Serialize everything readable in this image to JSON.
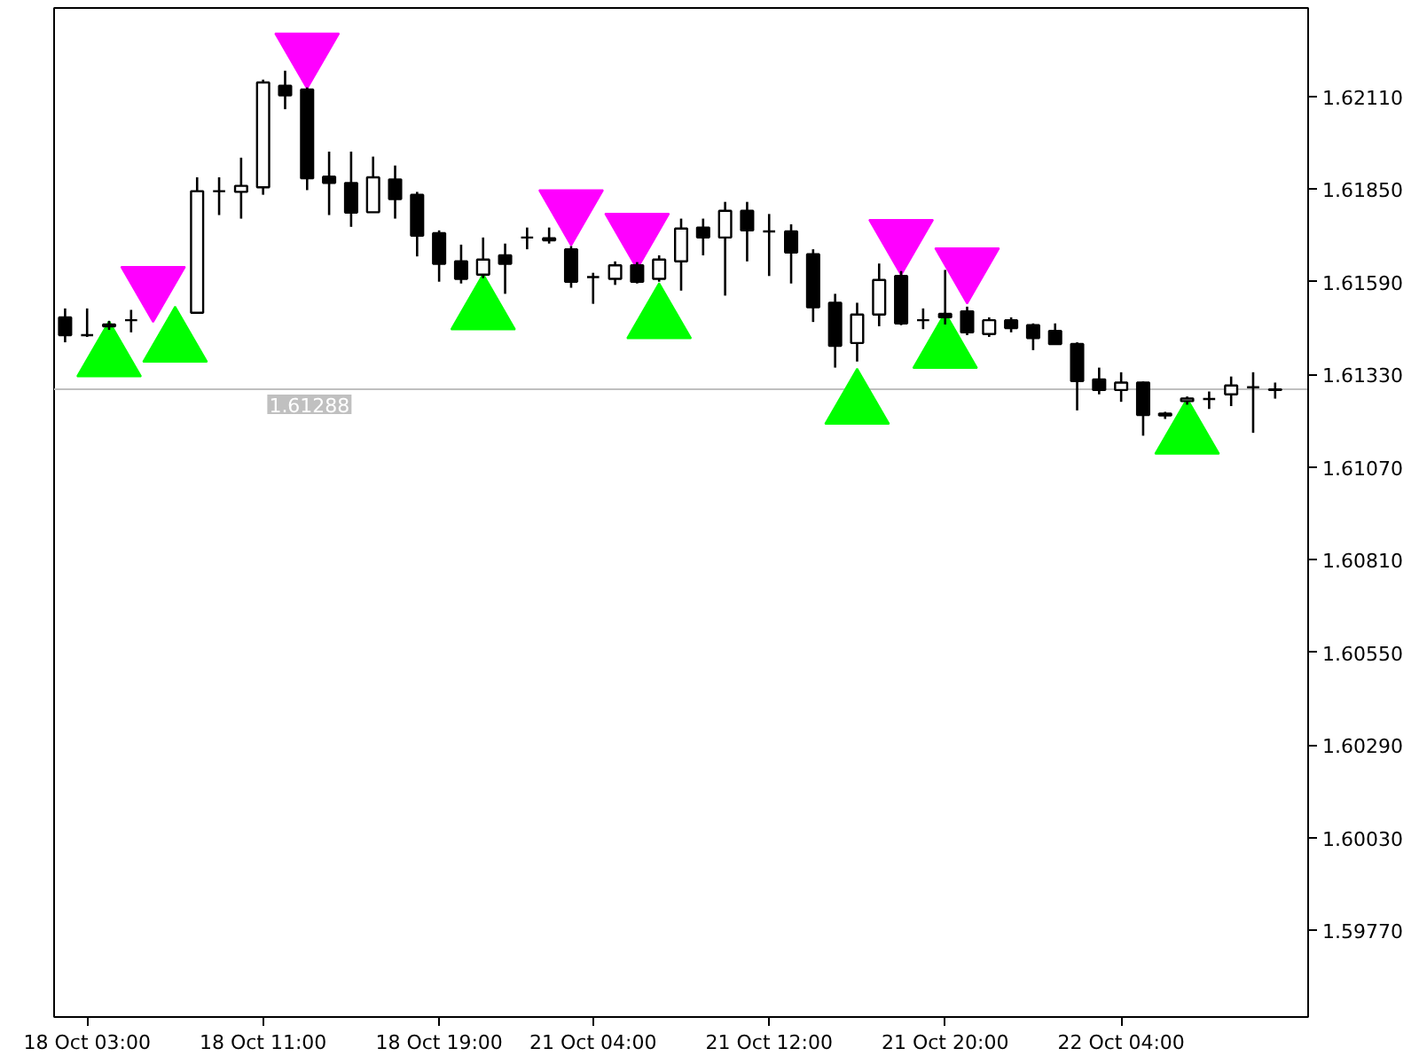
{
  "chart_data": {
    "type": "candlestick",
    "categories": [
      null,
      "18 Oct 03:00",
      null,
      null,
      null,
      null,
      null,
      null,
      null,
      "18 Oct 11:00",
      null,
      null,
      null,
      null,
      null,
      null,
      null,
      "18 Oct 19:00",
      null,
      null,
      null,
      null,
      null,
      null,
      "21 Oct 04:00",
      null,
      null,
      null,
      null,
      null,
      null,
      null,
      "21 Oct 12:00",
      null,
      null,
      null,
      null,
      null,
      null,
      null,
      "21 Oct 20:00",
      null,
      null,
      null,
      null,
      null,
      null,
      null,
      "22 Oct 04:00",
      null,
      null,
      null,
      null,
      null,
      null,
      null
    ],
    "ohlc": [
      [
        1.6149,
        1.61515,
        1.6142,
        1.6144
      ],
      [
        1.6144,
        1.61515,
        1.61435,
        1.6144
      ],
      [
        1.61465,
        1.6148,
        1.61455,
        1.6147
      ],
      [
        1.61482,
        1.61511,
        1.61448,
        1.61482
      ],
      null,
      null,
      [
        1.61503,
        1.61883,
        1.615,
        1.61844
      ],
      [
        1.61844,
        1.61883,
        1.61777,
        1.61844
      ],
      [
        1.61842,
        1.61938,
        1.61767,
        1.61859
      ],
      [
        1.61855,
        1.62157,
        1.61834,
        1.62149
      ],
      [
        1.6214,
        1.62182,
        1.62074,
        1.62113
      ],
      [
        1.62129,
        1.62135,
        1.61847,
        1.6188
      ],
      [
        1.61885,
        1.61955,
        1.61777,
        1.61867
      ],
      [
        1.61867,
        1.61955,
        1.61744,
        1.61784
      ],
      [
        1.61785,
        1.61941,
        1.61785,
        1.61883
      ],
      [
        1.61877,
        1.61916,
        1.61767,
        1.61822
      ],
      [
        1.61834,
        1.61842,
        1.61661,
        1.61719
      ],
      [
        1.61726,
        1.61734,
        1.6159,
        1.6164
      ],
      [
        1.61647,
        1.61694,
        1.61585,
        1.61598
      ],
      [
        1.6161,
        1.61714,
        1.616,
        1.61652
      ],
      [
        1.61664,
        1.61697,
        1.61556,
        1.6164
      ],
      [
        1.61714,
        1.61742,
        1.61681,
        1.61714
      ],
      [
        1.61712,
        1.61742,
        1.61697,
        1.61706
      ],
      [
        1.61681,
        1.6169,
        1.61573,
        1.6159
      ],
      [
        1.61603,
        1.61615,
        1.61528,
        1.61603
      ],
      [
        1.61598,
        1.61647,
        1.61581,
        1.61636
      ],
      [
        1.61636,
        1.61645,
        1.61585,
        1.6159
      ],
      [
        1.61598,
        1.61664,
        1.6159,
        1.61652
      ],
      [
        1.61647,
        1.61767,
        1.61565,
        1.61739
      ],
      [
        1.61742,
        1.61767,
        1.61664,
        1.61714
      ],
      [
        1.61714,
        1.61814,
        1.61551,
        1.61789
      ],
      [
        1.61789,
        1.61814,
        1.61647,
        1.61734
      ],
      [
        1.61731,
        1.6178,
        1.61606,
        1.61731
      ],
      [
        1.61731,
        1.61751,
        1.61585,
        1.61672
      ],
      [
        1.61667,
        1.61681,
        1.61477,
        1.61518
      ],
      [
        1.61531,
        1.61556,
        1.61349,
        1.6141
      ],
      [
        1.61418,
        1.61531,
        1.61366,
        1.61498
      ],
      [
        1.61498,
        1.61641,
        1.61465,
        1.61595
      ],
      [
        1.61606,
        1.6162,
        1.61468,
        1.61473
      ],
      [
        1.61482,
        1.61515,
        1.61457,
        1.61482
      ],
      [
        1.615,
        1.61623,
        1.6147,
        1.6149
      ],
      [
        1.61507,
        1.6152,
        1.6144,
        1.61448
      ],
      [
        1.61443,
        1.6149,
        1.61435,
        1.61482
      ],
      [
        1.61482,
        1.6149,
        1.61448,
        1.6146
      ],
      [
        1.61468,
        1.61473,
        1.61398,
        1.61432
      ],
      [
        1.61452,
        1.61473,
        1.61415,
        1.61415
      ],
      [
        1.61415,
        1.6142,
        1.61229,
        1.61311
      ],
      [
        1.61316,
        1.61349,
        1.61274,
        1.61286
      ],
      [
        1.61286,
        1.61336,
        1.61253,
        1.61307
      ],
      [
        1.61307,
        1.6131,
        1.61158,
        1.61216
      ],
      [
        1.6122,
        1.61225,
        1.61205,
        1.61215
      ],
      [
        1.61255,
        1.61268,
        1.61245,
        1.61262
      ],
      [
        1.61261,
        1.61282,
        1.61233,
        1.61261
      ],
      [
        1.61274,
        1.61324,
        1.61241,
        1.61299
      ],
      [
        1.61294,
        1.61336,
        1.61166,
        1.61294
      ],
      [
        1.61286,
        1.61307,
        1.61262,
        1.61288
      ]
    ],
    "series": [
      {
        "type": "scatter",
        "color": "#00ff00",
        "values": [
          null,
          null,
          1.61376,
          null,
          null,
          1.61417,
          null,
          null,
          null,
          null,
          null,
          null,
          null,
          null,
          null,
          null,
          null,
          null,
          null,
          1.61508,
          null,
          null,
          null,
          null,
          null,
          null,
          null,
          1.61483,
          null,
          null,
          null,
          null,
          null,
          null,
          null,
          null,
          1.61243,
          null,
          null,
          null,
          1.614,
          null,
          null,
          null,
          null,
          null,
          null,
          null,
          null,
          null,
          null,
          1.61159,
          null,
          null,
          null,
          null
        ]
      },
      {
        "type": "scatter",
        "color": "#ff00ff",
        "values": [
          null,
          null,
          null,
          null,
          1.6158,
          null,
          null,
          null,
          null,
          null,
          null,
          1.62235,
          null,
          null,
          null,
          null,
          null,
          null,
          null,
          null,
          null,
          null,
          null,
          1.61795,
          null,
          null,
          1.61729,
          null,
          null,
          null,
          null,
          null,
          null,
          null,
          null,
          null,
          null,
          null,
          1.61712,
          null,
          null,
          1.61632,
          null,
          null,
          null,
          null,
          null,
          null,
          null,
          null,
          null,
          null,
          null,
          null,
          null,
          null
        ]
      }
    ],
    "marker": "triangle",
    "ylim": [
      1.59527,
      1.62358
    ],
    "yticks": [
      {
        "value": 1.6211,
        "label": "1.62110"
      },
      {
        "value": 1.6185,
        "label": "1.61850"
      },
      {
        "value": 1.6159,
        "label": "1.61590"
      },
      {
        "value": 1.6133,
        "label": "1.61330"
      },
      {
        "value": 1.6107,
        "label": "1.61070"
      },
      {
        "value": 1.6081,
        "label": "1.60810"
      },
      {
        "value": 1.6055,
        "label": "1.60550"
      },
      {
        "value": 1.6029,
        "label": "1.60290"
      },
      {
        "value": 1.6003,
        "label": "1.60030"
      },
      {
        "value": 1.5977,
        "label": "1.59770"
      }
    ],
    "ref_lines": [
      {
        "axis": "y",
        "value": 1.61288,
        "label": "1.61288",
        "color": "#c0c0c0"
      }
    ]
  }
}
